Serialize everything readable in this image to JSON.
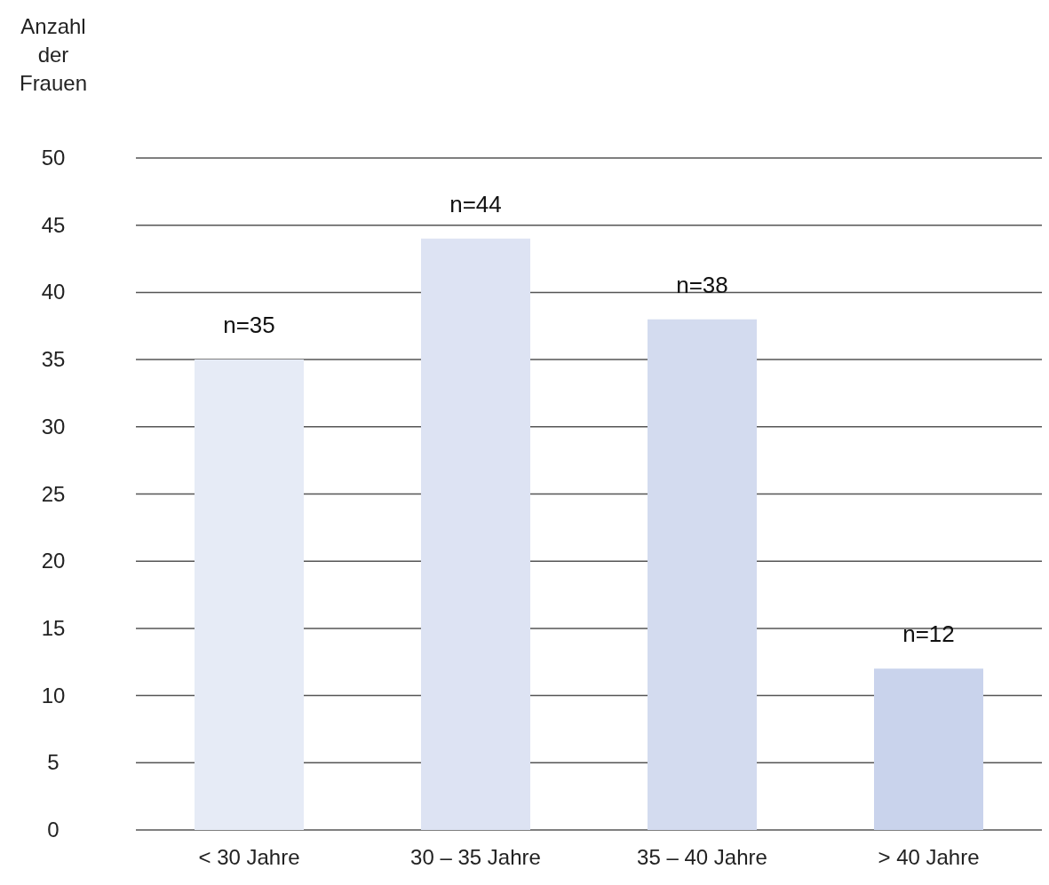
{
  "chart_data": {
    "type": "bar",
    "ylabel": "Anzahl der Frauen",
    "categories": [
      "< 30 Jahre",
      "30 – 35 Jahre",
      "35 – 40 Jahre",
      "> 40 Jahre"
    ],
    "values": [
      35,
      44,
      38,
      12
    ],
    "value_labels": [
      "n=35",
      "n=44",
      "n=38",
      "n=12"
    ],
    "colors": [
      "#e6ebf6",
      "#dde3f3",
      "#d3dbef",
      "#c9d3ec"
    ],
    "ylim": [
      0,
      50
    ],
    "yticks": [
      0,
      5,
      10,
      15,
      20,
      25,
      30,
      35,
      40,
      45,
      50
    ],
    "grid": "y"
  }
}
